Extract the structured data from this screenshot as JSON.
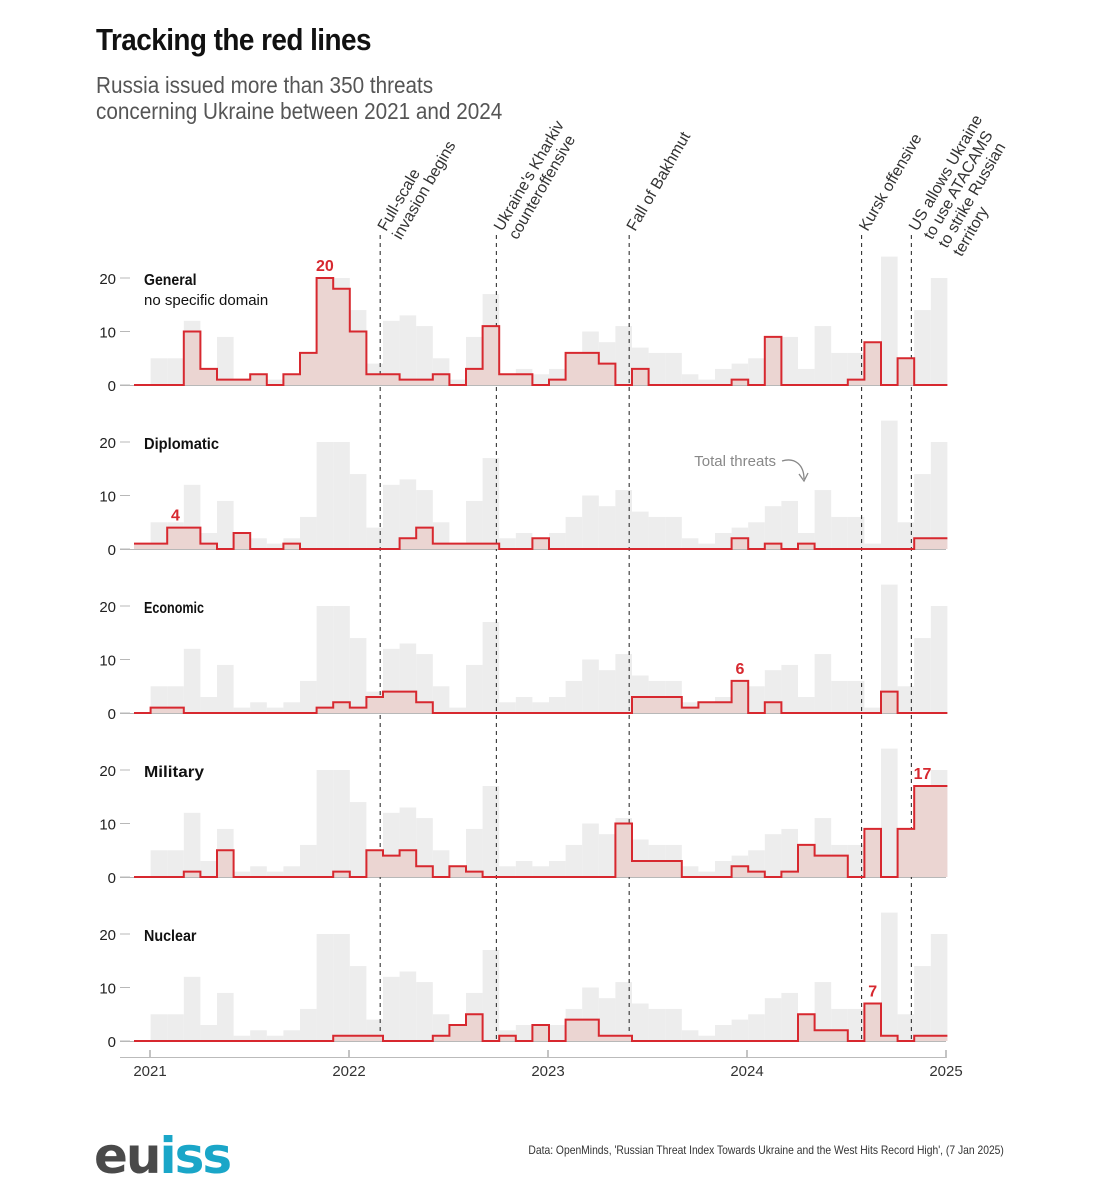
{
  "title": "Tracking the red lines",
  "subtitle_line1": "Russia issued more than 350 threats",
  "subtitle_line2": "concerning Ukraine between 2021 and 2024",
  "source": "Data: OpenMinds, 'Russian Threat Index Towards Ukraine and the West Hits Record High', (7 Jan 2025)",
  "logo": {
    "part1": "eu",
    "part2": "iss"
  },
  "colors": {
    "accent": "#d7282f",
    "fill": "#ebd5d2",
    "total": "#ededed",
    "axis": "#999999",
    "annotation": "#888888"
  },
  "chart_data": {
    "type": "area",
    "step": true,
    "title": "Tracking the red lines",
    "x_ticks": [
      "2021",
      "2022",
      "2023",
      "2024",
      "2025"
    ],
    "ylim": [
      0,
      25
    ],
    "y_ticks": [
      0,
      10,
      20
    ],
    "x_start": "2020-12",
    "x_end": "2024-12",
    "totals_label": "Total threats",
    "total": [
      0,
      5,
      5,
      12,
      3,
      9,
      1,
      2,
      1,
      2,
      6,
      20,
      20,
      14,
      4,
      12,
      13,
      11,
      5,
      1,
      9,
      17,
      2,
      3,
      2,
      3,
      6,
      10,
      8,
      11,
      7,
      6,
      6,
      2,
      1,
      3,
      4,
      5,
      8,
      9,
      3,
      11,
      6,
      6,
      1,
      24,
      5,
      14,
      20
    ],
    "events": [
      {
        "label_lines": [
          "Full-scale",
          "invasion begins"
        ],
        "x": 14.8
      },
      {
        "label_lines": [
          "Ukraine's Kharkiv",
          "counteroffensive"
        ],
        "x": 21.8
      },
      {
        "label_lines": [
          "Fall of Bakhmut"
        ],
        "x": 29.8
      },
      {
        "label_lines": [
          "Kursk offensive"
        ],
        "x": 43.8
      },
      {
        "label_lines": [
          "US allows Ukraine",
          "to use ATACAMS",
          "to strike Russian",
          "territory"
        ],
        "x": 46.8
      }
    ],
    "series": [
      {
        "name": "General",
        "sublabel": "no specific domain",
        "values": [
          0,
          0,
          0,
          10,
          3,
          1,
          1,
          2,
          0,
          2,
          6,
          20,
          18,
          10,
          2,
          2,
          1,
          1,
          2,
          0,
          3,
          11,
          2,
          2,
          0,
          1,
          6,
          6,
          4,
          0,
          3,
          0,
          0,
          0,
          0,
          0,
          1,
          0,
          9,
          0,
          0,
          0,
          0,
          1,
          8,
          0,
          5,
          0,
          0
        ],
        "highlight": {
          "index": 11,
          "label": "20"
        }
      },
      {
        "name": "Diplomatic",
        "sublabel": "",
        "values": [
          1,
          1,
          4,
          4,
          1,
          0,
          3,
          0,
          0,
          1,
          0,
          0,
          0,
          0,
          0,
          0,
          2,
          4,
          1,
          1,
          1,
          1,
          0,
          0,
          2,
          0,
          0,
          0,
          0,
          0,
          0,
          0,
          0,
          0,
          0,
          0,
          2,
          0,
          1,
          0,
          1,
          0,
          0,
          0,
          0,
          0,
          0,
          2,
          2
        ],
        "highlight": {
          "index": 2,
          "label": "4"
        },
        "annotation": "Total threats"
      },
      {
        "name": "Economic",
        "sublabel": "",
        "values": [
          0,
          1,
          1,
          0,
          0,
          0,
          0,
          0,
          0,
          0,
          0,
          1,
          2,
          1,
          3,
          4,
          4,
          2,
          0,
          0,
          0,
          0,
          0,
          0,
          0,
          0,
          0,
          0,
          0,
          0,
          3,
          3,
          3,
          1,
          2,
          2,
          6,
          0,
          2,
          0,
          0,
          0,
          0,
          0,
          0,
          4,
          0,
          0,
          0
        ],
        "highlight": {
          "index": 36,
          "label": "6"
        }
      },
      {
        "name": "Military",
        "sublabel": "",
        "values": [
          0,
          0,
          0,
          1,
          0,
          5,
          0,
          0,
          0,
          0,
          0,
          0,
          1,
          0,
          5,
          4,
          5,
          2,
          0,
          2,
          1,
          0,
          0,
          0,
          0,
          0,
          0,
          0,
          0,
          10,
          3,
          3,
          3,
          0,
          0,
          0,
          2,
          1,
          0,
          1,
          6,
          4,
          4,
          0,
          9,
          0,
          9,
          17,
          17
        ],
        "highlight": {
          "index": 47,
          "label": "17"
        }
      },
      {
        "name": "Nuclear",
        "sublabel": "",
        "values": [
          0,
          0,
          0,
          0,
          0,
          0,
          0,
          0,
          0,
          0,
          0,
          0,
          1,
          1,
          1,
          0,
          0,
          0,
          1,
          3,
          5,
          0,
          1,
          0,
          3,
          0,
          4,
          4,
          1,
          1,
          0,
          0,
          0,
          0,
          0,
          0,
          0,
          0,
          0,
          0,
          5,
          2,
          2,
          0,
          7,
          1,
          0,
          1,
          1
        ],
        "highlight": {
          "index": 44,
          "label": "7"
        }
      }
    ]
  }
}
